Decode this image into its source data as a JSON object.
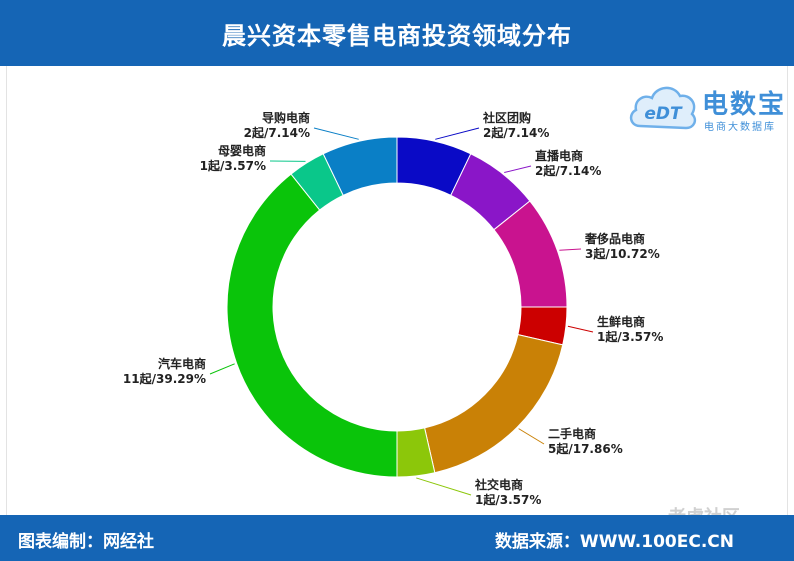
{
  "header": {
    "title": "晨兴资本零售电商投资领域分布"
  },
  "footer": {
    "left_text": "图表编制：网经社",
    "right_text": "数据来源：WWW.100EC.CN"
  },
  "logo": {
    "name": "电数宝",
    "subtitle": "电商大数据库",
    "mark": "eDT"
  },
  "watermark": {
    "text": "老虎社区"
  },
  "chart_data": {
    "type": "pie",
    "donut": true,
    "legend": "none",
    "start_angle_deg": 0,
    "direction": "clockwise",
    "slices": [
      {
        "name": "社区团购",
        "count_label": "2起/7.14%",
        "value": 2,
        "percent": 7.14,
        "color": "#0a0ac6"
      },
      {
        "name": "直播电商",
        "count_label": "2起/7.14%",
        "value": 2,
        "percent": 7.14,
        "color": "#8a16c8"
      },
      {
        "name": "奢侈品电商",
        "count_label": "3起/10.72%",
        "value": 3,
        "percent": 10.72,
        "color": "#c9138f"
      },
      {
        "name": "生鲜电商",
        "count_label": "1起/3.57%",
        "value": 1,
        "percent": 3.57,
        "color": "#cc0000"
      },
      {
        "name": "二手电商",
        "count_label": "5起/17.86%",
        "value": 5,
        "percent": 17.86,
        "color": "#c98106"
      },
      {
        "name": "社交电商",
        "count_label": "1起/3.57%",
        "value": 1,
        "percent": 3.57,
        "color": "#8cc70a"
      },
      {
        "name": "汽车电商",
        "count_label": "11起/39.29%",
        "value": 11,
        "percent": 39.29,
        "color": "#0ac40a"
      },
      {
        "name": "母婴电商",
        "count_label": "1起/3.57%",
        "value": 1,
        "percent": 3.57,
        "color": "#0ac78a"
      },
      {
        "name": "导购电商",
        "count_label": "2起/7.14%",
        "value": 2,
        "percent": 7.14,
        "color": "#0a7fc6"
      }
    ]
  }
}
